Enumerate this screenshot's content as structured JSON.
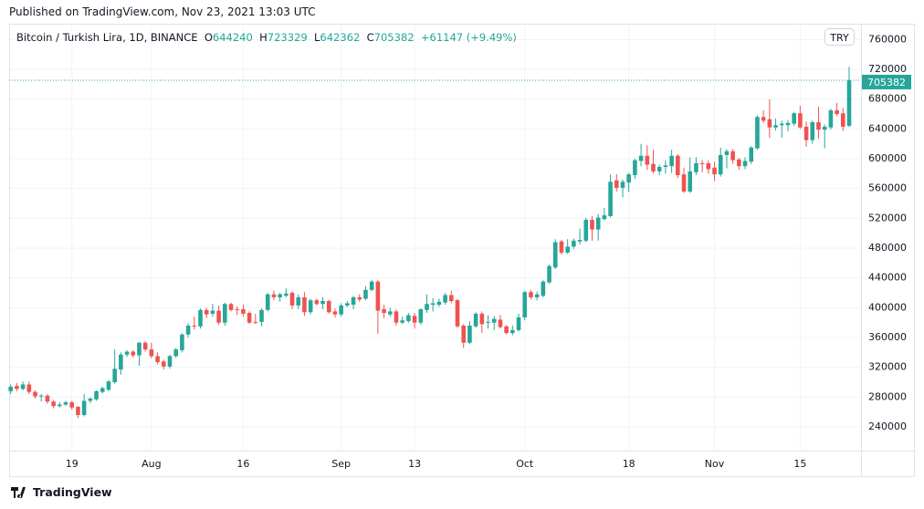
{
  "published": "Published on TradingView.com, Nov 23, 2021 13:03 UTC",
  "legend": {
    "symbol": "Bitcoin / Turkish Lira, 1D, BINANCE",
    "o_label": "O",
    "o": "644240",
    "h_label": "H",
    "h": "723329",
    "l_label": "L",
    "l": "642362",
    "c_label": "C",
    "c": "705382",
    "change": "+61147 (+9.49%)"
  },
  "currency_badge": "TRY",
  "last_price_label": "705382",
  "footer_brand": "TradingView",
  "colors": {
    "up": "#26a69a",
    "down": "#ef5350",
    "grid": "#f0f3fa",
    "axis_border": "#e0e3eb"
  },
  "chart_data": {
    "type": "candlestick",
    "ylim": [
      220000,
      770000
    ],
    "y_ticks": [
      240000,
      280000,
      320000,
      360000,
      400000,
      440000,
      480000,
      520000,
      560000,
      600000,
      640000,
      680000,
      720000,
      760000
    ],
    "y_tick_labels": [
      "240000",
      "280000",
      "320000",
      "360000",
      "400000",
      "440000",
      "480000",
      "520000",
      "560000",
      "600000",
      "640000",
      "680000",
      "720000",
      "760000"
    ],
    "x_ticks": [
      {
        "label": "19",
        "date": "Jul 19"
      },
      {
        "label": "Aug",
        "date": "Aug 1"
      },
      {
        "label": "16",
        "date": "Aug 16"
      },
      {
        "label": "Sep",
        "date": "Sep 1"
      },
      {
        "label": "13",
        "date": "Sep 13"
      },
      {
        "label": "Oct",
        "date": "Oct 1"
      },
      {
        "label": "18",
        "date": "Oct 18"
      },
      {
        "label": "Nov",
        "date": "Nov 1"
      },
      {
        "label": "15",
        "date": "Nov 15"
      }
    ],
    "last_price": 705382,
    "grid": true,
    "candles_fields": [
      "date",
      "open",
      "high",
      "low",
      "close"
    ],
    "candles": [
      [
        "Jul 9",
        288000,
        297000,
        284000,
        294000
      ],
      [
        "Jul 10",
        295000,
        299000,
        288000,
        291000
      ],
      [
        "Jul 11",
        291000,
        301000,
        289000,
        297000
      ],
      [
        "Jul 12",
        297000,
        301000,
        284000,
        287000
      ],
      [
        "Jul 13",
        287000,
        289000,
        278000,
        281000
      ],
      [
        "Jul 14",
        281000,
        284000,
        274000,
        282000
      ],
      [
        "Jul 15",
        282000,
        284000,
        271000,
        274000
      ],
      [
        "Jul 16",
        274000,
        276000,
        265000,
        268000
      ],
      [
        "Jul 17",
        268000,
        273000,
        266000,
        270000
      ],
      [
        "Jul 18",
        270000,
        275000,
        268000,
        273000
      ],
      [
        "Jul 19",
        273000,
        275000,
        263000,
        266000
      ],
      [
        "Jul 20",
        267000,
        268000,
        252000,
        256000
      ],
      [
        "Jul 21",
        256000,
        284000,
        254000,
        275000
      ],
      [
        "Jul 22",
        275000,
        280000,
        272000,
        278000
      ],
      [
        "Jul 23",
        277000,
        289000,
        275000,
        288000
      ],
      [
        "Jul 24",
        287000,
        294000,
        285000,
        292000
      ],
      [
        "Jul 25",
        290000,
        303000,
        288000,
        301000
      ],
      [
        "Jul 26",
        300000,
        344000,
        298000,
        318000
      ],
      [
        "Jul 27",
        317000,
        340000,
        310000,
        337000
      ],
      [
        "Jul 28",
        337000,
        343000,
        334000,
        341000
      ],
      [
        "Jul 29",
        341000,
        343000,
        333000,
        336000
      ],
      [
        "Jul 30",
        336000,
        354000,
        322000,
        353000
      ],
      [
        "Jul 31",
        353000,
        355000,
        341000,
        344000
      ],
      [
        "Aug 1",
        344000,
        353000,
        332000,
        335000
      ],
      [
        "Aug 2",
        335000,
        340000,
        324000,
        327000
      ],
      [
        "Aug 3",
        328000,
        330000,
        317000,
        321000
      ],
      [
        "Aug 4",
        321000,
        337000,
        318000,
        335000
      ],
      [
        "Aug 5",
        335000,
        346000,
        333000,
        344000
      ],
      [
        "Aug 6",
        343000,
        366000,
        340000,
        364000
      ],
      [
        "Aug 7",
        364000,
        379000,
        360000,
        376000
      ],
      [
        "Aug 8",
        376000,
        388000,
        371000,
        375000
      ],
      [
        "Aug 9",
        375000,
        399000,
        372000,
        397000
      ],
      [
        "Aug 10",
        397000,
        400000,
        386000,
        391000
      ],
      [
        "Aug 11",
        392000,
        405000,
        388000,
        396000
      ],
      [
        "Aug 12",
        396000,
        403000,
        377000,
        380000
      ],
      [
        "Aug 13",
        380000,
        407000,
        376000,
        405000
      ],
      [
        "Aug 14",
        405000,
        407000,
        395000,
        397000
      ],
      [
        "Aug 15",
        398000,
        402000,
        390000,
        397000
      ],
      [
        "Aug 16",
        398000,
        404000,
        388000,
        392000
      ],
      [
        "Aug 17",
        393000,
        395000,
        378000,
        380000
      ],
      [
        "Aug 18",
        381000,
        392000,
        378000,
        380000
      ],
      [
        "Aug 19",
        381000,
        399000,
        375000,
        397000
      ],
      [
        "Aug 20",
        397000,
        420000,
        395000,
        418000
      ],
      [
        "Aug 21",
        418000,
        423000,
        410000,
        414000
      ],
      [
        "Aug 22",
        414000,
        420000,
        408000,
        418000
      ],
      [
        "Aug 23",
        416000,
        426000,
        414000,
        419000
      ],
      [
        "Aug 24",
        420000,
        422000,
        398000,
        403000
      ],
      [
        "Aug 25",
        403000,
        418000,
        398000,
        414000
      ],
      [
        "Aug 26",
        414000,
        421000,
        389000,
        394000
      ],
      [
        "Aug 27",
        394000,
        412000,
        391000,
        410000
      ],
      [
        "Aug 28",
        410000,
        412000,
        403000,
        405000
      ],
      [
        "Aug 29",
        405000,
        414000,
        398000,
        409000
      ],
      [
        "Aug 30",
        409000,
        411000,
        392000,
        394000
      ],
      [
        "Aug 31",
        395000,
        399000,
        387000,
        391000
      ],
      [
        "Sep 1",
        391000,
        406000,
        388000,
        403000
      ],
      [
        "Sep 2",
        403000,
        409000,
        401000,
        406000
      ],
      [
        "Sep 3",
        404000,
        416000,
        398000,
        414000
      ],
      [
        "Sep 4",
        414000,
        418000,
        408000,
        411000
      ],
      [
        "Sep 5",
        412000,
        429000,
        410000,
        424000
      ],
      [
        "Sep 6",
        424000,
        437000,
        422000,
        435000
      ],
      [
        "Sep 7",
        435000,
        437000,
        365000,
        396000
      ],
      [
        "Sep 8",
        398000,
        404000,
        386000,
        393000
      ],
      [
        "Sep 9",
        391000,
        400000,
        388000,
        395000
      ],
      [
        "Sep 10",
        395000,
        398000,
        376000,
        380000
      ],
      [
        "Sep 11",
        380000,
        388000,
        378000,
        383000
      ],
      [
        "Sep 12",
        382000,
        393000,
        380000,
        390000
      ],
      [
        "Sep 13",
        389000,
        393000,
        372000,
        380000
      ],
      [
        "Sep 14",
        380000,
        399000,
        377000,
        398000
      ],
      [
        "Sep 15",
        397000,
        418000,
        393000,
        405000
      ],
      [
        "Sep 16",
        404000,
        413000,
        395000,
        406000
      ],
      [
        "Sep 17",
        404000,
        412000,
        401000,
        408000
      ],
      [
        "Sep 18",
        407000,
        420000,
        404000,
        417000
      ],
      [
        "Sep 19",
        417000,
        423000,
        406000,
        409000
      ],
      [
        "Sep 20",
        410000,
        412000,
        373000,
        375000
      ],
      [
        "Sep 21",
        376000,
        378000,
        346000,
        353000
      ],
      [
        "Sep 22",
        353000,
        382000,
        351000,
        376000
      ],
      [
        "Sep 23",
        375000,
        394000,
        373000,
        392000
      ],
      [
        "Sep 24",
        392000,
        395000,
        366000,
        378000
      ],
      [
        "Sep 25",
        380000,
        390000,
        372000,
        381000
      ],
      [
        "Sep 26",
        380000,
        389000,
        370000,
        385000
      ],
      [
        "Sep 27",
        384000,
        390000,
        372000,
        374000
      ],
      [
        "Sep 28",
        375000,
        377000,
        364000,
        366000
      ],
      [
        "Sep 29",
        366000,
        376000,
        363000,
        370000
      ],
      [
        "Sep 30",
        370000,
        392000,
        368000,
        387000
      ],
      [
        "Oct 1",
        387000,
        423000,
        383000,
        421000
      ],
      [
        "Oct 2",
        421000,
        424000,
        411000,
        414000
      ],
      [
        "Oct 3",
        414000,
        422000,
        410000,
        418000
      ],
      [
        "Oct 4",
        416000,
        437000,
        414000,
        435000
      ],
      [
        "Oct 5",
        434000,
        458000,
        432000,
        456000
      ],
      [
        "Oct 6",
        454000,
        492000,
        452000,
        488000
      ],
      [
        "Oct 7",
        489000,
        491000,
        471000,
        474000
      ],
      [
        "Oct 8",
        474000,
        492000,
        472000,
        482000
      ],
      [
        "Oct 9",
        482000,
        493000,
        479000,
        490000
      ],
      [
        "Oct 10",
        489000,
        506000,
        485000,
        491000
      ],
      [
        "Oct 11",
        490000,
        521000,
        488000,
        518000
      ],
      [
        "Oct 12",
        518000,
        523000,
        490000,
        505000
      ],
      [
        "Oct 13",
        505000,
        526000,
        490000,
        521000
      ],
      [
        "Oct 14",
        519000,
        534000,
        517000,
        524000
      ],
      [
        "Oct 15",
        523000,
        579000,
        521000,
        569000
      ],
      [
        "Oct 16",
        571000,
        579000,
        556000,
        561000
      ],
      [
        "Oct 17",
        561000,
        572000,
        548000,
        569000
      ],
      [
        "Oct 18",
        568000,
        581000,
        555000,
        579000
      ],
      [
        "Oct 19",
        578000,
        600000,
        573000,
        598000
      ],
      [
        "Oct 20",
        597000,
        620000,
        590000,
        604000
      ],
      [
        "Oct 21",
        604000,
        618000,
        585000,
        592000
      ],
      [
        "Oct 22",
        593000,
        612000,
        580000,
        583000
      ],
      [
        "Oct 23",
        583000,
        592000,
        578000,
        589000
      ],
      [
        "Oct 24",
        589000,
        598000,
        580000,
        591000
      ],
      [
        "Oct 25",
        590000,
        612000,
        581000,
        604000
      ],
      [
        "Oct 26",
        604000,
        606000,
        574000,
        578000
      ],
      [
        "Oct 27",
        579000,
        588000,
        554000,
        556000
      ],
      [
        "Oct 28",
        556000,
        602000,
        554000,
        583000
      ],
      [
        "Oct 29",
        582000,
        602000,
        578000,
        594000
      ],
      [
        "Oct 30",
        594000,
        598000,
        582000,
        593000
      ],
      [
        "Oct 31",
        594000,
        598000,
        580000,
        586000
      ],
      [
        "Nov 1",
        588000,
        596000,
        570000,
        579000
      ],
      [
        "Nov 2",
        579000,
        615000,
        576000,
        605000
      ],
      [
        "Nov 3",
        605000,
        613000,
        587000,
        610000
      ],
      [
        "Nov 4",
        610000,
        613000,
        593000,
        598000
      ],
      [
        "Nov 5",
        599000,
        601000,
        585000,
        590000
      ],
      [
        "Nov 6",
        590000,
        602000,
        586000,
        597000
      ],
      [
        "Nov 7",
        596000,
        617000,
        593000,
        615000
      ],
      [
        "Nov 8",
        614000,
        658000,
        612000,
        656000
      ],
      [
        "Nov 9",
        656000,
        665000,
        648000,
        651000
      ],
      [
        "Nov 10",
        653000,
        680000,
        628000,
        642000
      ],
      [
        "Nov 11",
        642000,
        654000,
        638000,
        645000
      ],
      [
        "Nov 12",
        645000,
        651000,
        628000,
        647000
      ],
      [
        "Nov 13",
        645000,
        652000,
        637000,
        648000
      ],
      [
        "Nov 14",
        647000,
        663000,
        644000,
        661000
      ],
      [
        "Nov 15",
        661000,
        671000,
        640000,
        642000
      ],
      [
        "Nov 16",
        643000,
        650000,
        616000,
        625000
      ],
      [
        "Nov 17",
        625000,
        651000,
        620000,
        649000
      ],
      [
        "Nov 18",
        649000,
        670000,
        627000,
        639000
      ],
      [
        "Nov 19",
        639000,
        646000,
        614000,
        643000
      ],
      [
        "Nov 20",
        642000,
        667000,
        639000,
        665000
      ],
      [
        "Nov 21",
        665000,
        675000,
        657000,
        660000
      ],
      [
        "Nov 22",
        661000,
        668000,
        637000,
        643000
      ],
      [
        "Nov 23",
        644240,
        723329,
        642362,
        705382
      ]
    ]
  }
}
